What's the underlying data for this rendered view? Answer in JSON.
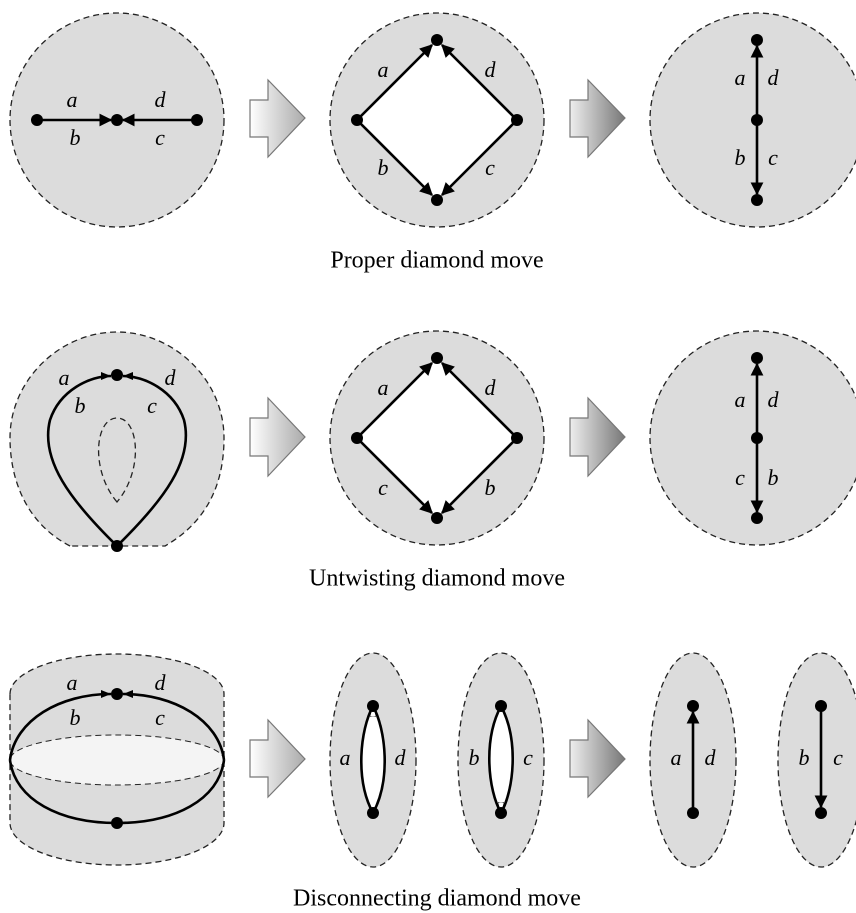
{
  "rows": [
    {
      "caption": "Proper diamond move",
      "panels": [
        {
          "labels": [
            "a",
            "b",
            "d",
            "c"
          ]
        },
        {
          "labels": [
            "a",
            "d",
            "b",
            "c"
          ]
        },
        {
          "labels": [
            "a",
            "d",
            "b",
            "c"
          ]
        }
      ]
    },
    {
      "caption": "Untwisting diamond move",
      "panels": [
        {
          "labels": [
            "a",
            "d",
            "b",
            "c"
          ]
        },
        {
          "labels": [
            "a",
            "d",
            "c",
            "b"
          ]
        },
        {
          "labels": [
            "a",
            "d",
            "c",
            "b"
          ]
        }
      ]
    },
    {
      "caption": "Disconnecting diamond move",
      "panels": [
        {
          "labels": [
            "a",
            "d",
            "b",
            "c"
          ]
        },
        {
          "labels": [
            "a",
            "d",
            "b",
            "c"
          ]
        },
        {
          "labels": [
            "a",
            "d",
            "b",
            "c"
          ]
        }
      ]
    }
  ]
}
